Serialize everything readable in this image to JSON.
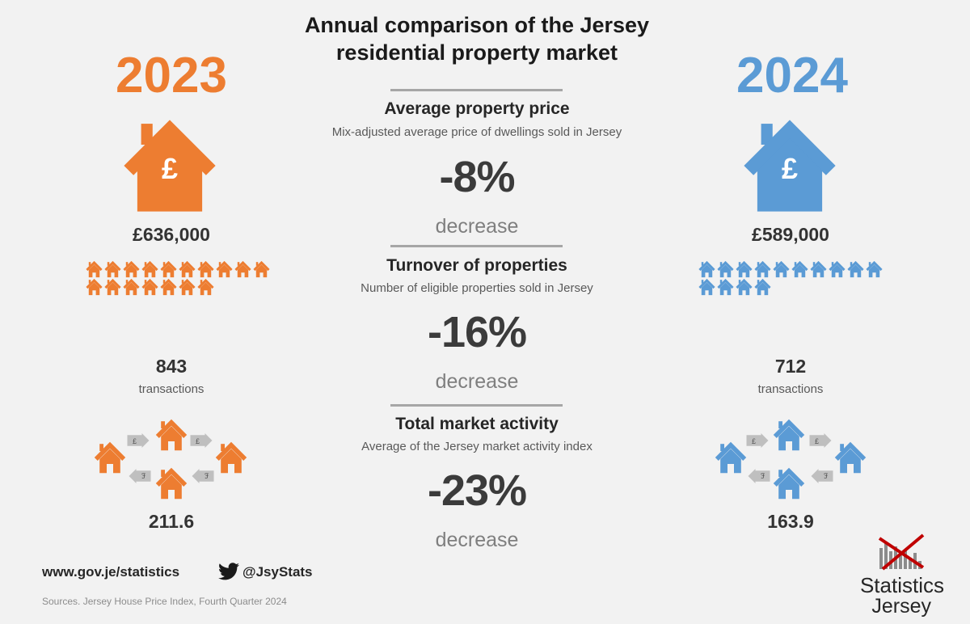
{
  "title": "Annual comparison of the Jersey residential property market",
  "colors": {
    "y2023": "#ed7d31",
    "y2024": "#5b9bd5",
    "dark": "#404040"
  },
  "left": {
    "year": "2023",
    "price": "£636,000",
    "transactions": "843",
    "transactions_label": "transactions",
    "activity": "211.6"
  },
  "right": {
    "year": "2024",
    "price": "£589,000",
    "transactions": "712",
    "transactions_label": "transactions",
    "activity": "163.9"
  },
  "sections": [
    {
      "heading": "Average property price",
      "subtitle": "Mix-adjusted average price of dwellings sold in Jersey",
      "change": "-8%",
      "direction": "decrease"
    },
    {
      "heading": "Turnover of properties",
      "subtitle": "Number of eligible properties sold in Jersey",
      "change": "-16%",
      "direction": "decrease"
    },
    {
      "heading": "Total market activity",
      "subtitle": "Average of the Jersey market activity index",
      "change": "-23%",
      "direction": "decrease"
    }
  ],
  "footer": {
    "website": "www.gov.je/statistics",
    "twitter": "@JsyStats",
    "sources": "Sources. Jersey House Price Index, Fourth Quarter 2024",
    "logo_line1": "Statistics",
    "logo_line2": "Jersey"
  },
  "icons": {
    "house": "house-icon",
    "pound": "pound-icon",
    "exchange": "money-arrow-icon",
    "twitter": "twitter-bird-icon"
  }
}
